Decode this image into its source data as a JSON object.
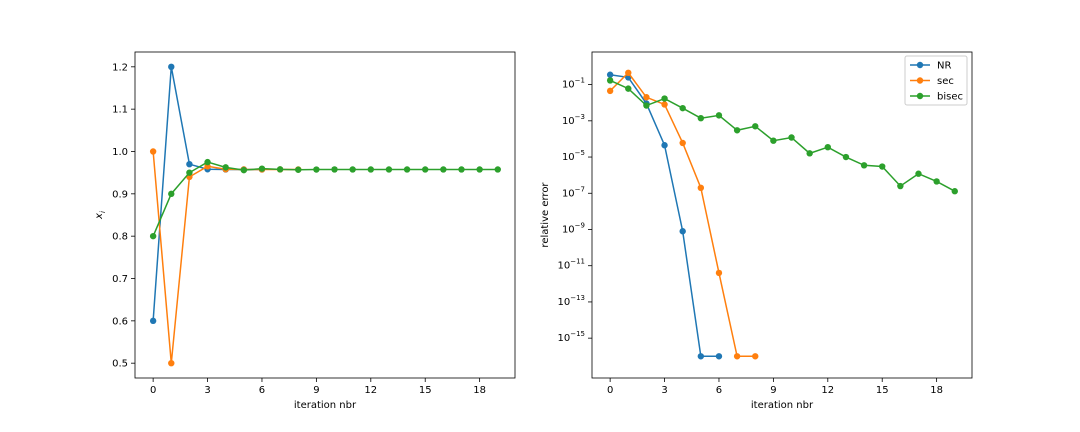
{
  "chart_data": [
    {
      "type": "line",
      "xlabel": "iteration nbr",
      "ylabel": "x_i",
      "ylabel_main": "x",
      "ylabel_sub": "i",
      "xlim": [
        -1,
        19.95
      ],
      "ylim": [
        0.465,
        1.235
      ],
      "xticks": [
        0,
        3,
        6,
        9,
        12,
        15,
        18
      ],
      "yticks": [
        0.5,
        0.6,
        0.7,
        0.8,
        0.9,
        1.0,
        1.1,
        1.2
      ],
      "ytick_labels": [
        "0.5",
        "0.6",
        "0.7",
        "0.8",
        "0.9",
        "1.0",
        "1.1",
        "1.2"
      ],
      "series": [
        {
          "name": "NR",
          "color": "#1f77b4",
          "x": [
            0,
            1,
            2,
            3,
            4,
            5,
            6
          ],
          "y": [
            0.6,
            1.2,
            0.97,
            0.958,
            0.9575,
            0.9575,
            0.9575
          ]
        },
        {
          "name": "sec",
          "color": "#ff7f0e",
          "x": [
            0,
            1,
            2,
            3,
            4,
            5,
            6,
            7,
            8
          ],
          "y": [
            1.0,
            0.5,
            0.94,
            0.965,
            0.958,
            0.9575,
            0.9575,
            0.9575,
            0.9575
          ]
        },
        {
          "name": "bisec",
          "color": "#2ca02c",
          "x": [
            0,
            1,
            2,
            3,
            4,
            5,
            6,
            7,
            8,
            9,
            10,
            11,
            12,
            13,
            14,
            15,
            16,
            17,
            18,
            19
          ],
          "y": [
            0.8,
            0.9,
            0.95,
            0.975,
            0.9625,
            0.956,
            0.9595,
            0.9578,
            0.9569,
            0.9574,
            0.9576,
            0.9575,
            0.9575,
            0.9575,
            0.9575,
            0.9575,
            0.9575,
            0.9575,
            0.9575,
            0.9575
          ]
        }
      ]
    },
    {
      "type": "line",
      "xlabel": "iteration nbr",
      "ylabel": "relative error",
      "yscale": "log",
      "legend_position": "top-right",
      "xlim": [
        -1,
        19.95
      ],
      "ylim_log10": [
        -17.2,
        0.8
      ],
      "xticks": [
        0,
        3,
        6,
        9,
        12,
        15,
        18
      ],
      "ytick_exponents": [
        -15,
        -13,
        -11,
        -9,
        -7,
        -5,
        -3,
        -1
      ],
      "ytick_labels": [
        "10−15",
        "10−13",
        "10−11",
        "10−9",
        "10−7",
        "10−5",
        "10−3",
        "10−1"
      ],
      "series": [
        {
          "name": "NR",
          "color": "#1f77b4",
          "x": [
            0,
            1,
            2,
            3,
            4,
            5,
            6
          ],
          "y": [
            0.35,
            0.25,
            0.009,
            4.5e-05,
            8e-10,
            1e-16,
            1e-16
          ]
        },
        {
          "name": "sec",
          "color": "#ff7f0e",
          "x": [
            0,
            1,
            2,
            3,
            4,
            5,
            6,
            7,
            8
          ],
          "y": [
            0.045,
            0.45,
            0.02,
            0.008,
            6e-05,
            2e-07,
            4e-12,
            1e-16,
            1e-16
          ]
        },
        {
          "name": "bisec",
          "color": "#2ca02c",
          "x": [
            0,
            1,
            2,
            3,
            4,
            5,
            6,
            7,
            8,
            9,
            10,
            11,
            12,
            13,
            14,
            15,
            16,
            17,
            18,
            19
          ],
          "y": [
            0.17,
            0.06,
            0.007,
            0.017,
            0.005,
            0.0014,
            0.002,
            0.0003,
            0.0005,
            8e-05,
            0.00012,
            1.6e-05,
            3.5e-05,
            1e-05,
            3.5e-06,
            3e-06,
            2.5e-07,
            1.2e-06,
            4.5e-07,
            1.3e-07
          ]
        }
      ]
    }
  ]
}
